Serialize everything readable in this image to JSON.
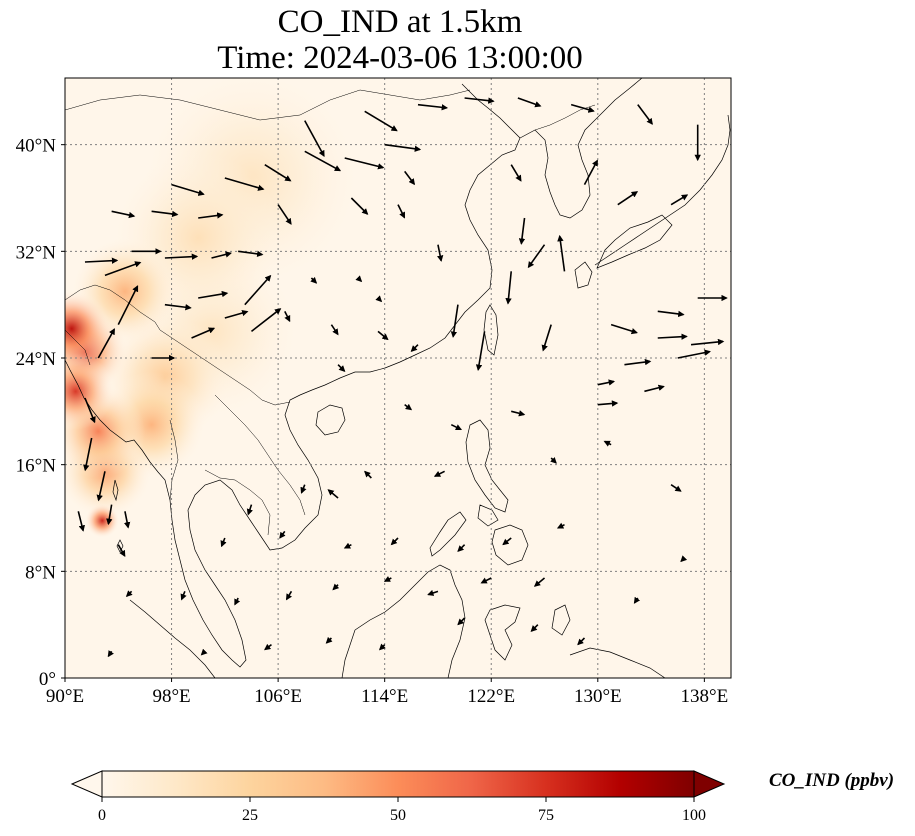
{
  "title": {
    "line1": "CO_IND at 1.5km",
    "line2": "Time: 2024-03-06 13:00:00"
  },
  "map": {
    "lon_range": [
      90,
      140
    ],
    "lat_range": [
      0,
      45
    ],
    "lon_ticks": [
      {
        "value": 90,
        "label": "90°E"
      },
      {
        "value": 98,
        "label": "98°E"
      },
      {
        "value": 106,
        "label": "106°E"
      },
      {
        "value": 114,
        "label": "114°E"
      },
      {
        "value": 122,
        "label": "122°E"
      },
      {
        "value": 130,
        "label": "130°E"
      },
      {
        "value": 138,
        "label": "138°E"
      }
    ],
    "lat_ticks": [
      {
        "value": 0,
        "label": "0°"
      },
      {
        "value": 8,
        "label": "8°N"
      },
      {
        "value": 16,
        "label": "16°N"
      },
      {
        "value": 24,
        "label": "24°N"
      },
      {
        "value": 32,
        "label": "32°N"
      },
      {
        "value": 40,
        "label": "40°N"
      }
    ],
    "gridlines": true
  },
  "colorbar": {
    "label": "CO_IND (ppbv)",
    "min": 0,
    "max": 100,
    "extend": "both",
    "colormap": "OrRd",
    "colors": [
      "#fff7ec",
      "#fee8c8",
      "#fdd49e",
      "#fdbb84",
      "#fc8d59",
      "#ef6548",
      "#d7301f",
      "#b30000",
      "#7f0000"
    ],
    "ticks": [
      {
        "value": 0,
        "label": "0"
      },
      {
        "value": 25,
        "label": "25"
      },
      {
        "value": 50,
        "label": "50"
      },
      {
        "value": 75,
        "label": "75"
      },
      {
        "value": 100,
        "label": "100"
      }
    ]
  },
  "field": {
    "background_ppbv": 3,
    "hotspots": [
      {
        "lon": 90.5,
        "lat": 26.2,
        "ppbv": 85,
        "radius_deg": 1.8
      },
      {
        "lon": 91.5,
        "lat": 24.5,
        "ppbv": 70,
        "radius_deg": 2.0
      },
      {
        "lon": 90.8,
        "lat": 21.5,
        "ppbv": 75,
        "radius_deg": 1.8
      },
      {
        "lon": 92.5,
        "lat": 18.5,
        "ppbv": 55,
        "radius_deg": 2.2
      },
      {
        "lon": 93.0,
        "lat": 15.5,
        "ppbv": 45,
        "radius_deg": 2.2
      },
      {
        "lon": 92.8,
        "lat": 11.8,
        "ppbv": 80,
        "radius_deg": 0.8
      },
      {
        "lon": 96.5,
        "lat": 19.0,
        "ppbv": 40,
        "radius_deg": 2.5
      },
      {
        "lon": 94.5,
        "lat": 29.0,
        "ppbv": 40,
        "radius_deg": 2.5
      },
      {
        "lon": 97.5,
        "lat": 22.5,
        "ppbv": 30,
        "radius_deg": 3.0
      },
      {
        "lon": 100.0,
        "lat": 33.0,
        "ppbv": 18,
        "radius_deg": 4.0
      },
      {
        "lon": 104.0,
        "lat": 37.5,
        "ppbv": 15,
        "radius_deg": 5.0
      },
      {
        "lon": 101.0,
        "lat": 26.0,
        "ppbv": 15,
        "radius_deg": 4.0
      }
    ]
  },
  "wind_vectors": [
    {
      "lon": 91.5,
      "lat": 31.2,
      "u": 2.0,
      "v": 0.1
    },
    {
      "lon": 93.0,
      "lat": 30.2,
      "u": 2.2,
      "v": 0.8
    },
    {
      "lon": 95.0,
      "lat": 32.0,
      "u": 1.8,
      "v": 0.0
    },
    {
      "lon": 97.5,
      "lat": 31.5,
      "u": 2.0,
      "v": 0.1
    },
    {
      "lon": 101.0,
      "lat": 31.5,
      "u": 1.2,
      "v": 0.3
    },
    {
      "lon": 93.5,
      "lat": 35.0,
      "u": 1.4,
      "v": -0.3
    },
    {
      "lon": 96.5,
      "lat": 35.0,
      "u": 1.6,
      "v": -0.2
    },
    {
      "lon": 100.0,
      "lat": 34.5,
      "u": 1.5,
      "v": 0.2
    },
    {
      "lon": 98.0,
      "lat": 37.0,
      "u": 2.0,
      "v": -0.6
    },
    {
      "lon": 102.0,
      "lat": 37.5,
      "u": 2.4,
      "v": -0.7
    },
    {
      "lon": 105.0,
      "lat": 38.5,
      "u": 1.6,
      "v": -1.0
    },
    {
      "lon": 108.0,
      "lat": 39.5,
      "u": 2.2,
      "v": -1.2
    },
    {
      "lon": 111.0,
      "lat": 39.0,
      "u": 2.4,
      "v": -0.6
    },
    {
      "lon": 114.0,
      "lat": 40.0,
      "u": 2.2,
      "v": -0.3
    },
    {
      "lon": 108.0,
      "lat": 41.8,
      "u": 1.2,
      "v": -2.2
    },
    {
      "lon": 112.5,
      "lat": 42.5,
      "u": 2.0,
      "v": -1.2
    },
    {
      "lon": 116.5,
      "lat": 43.0,
      "u": 1.8,
      "v": -0.2
    },
    {
      "lon": 120.0,
      "lat": 43.5,
      "u": 1.8,
      "v": -0.2
    },
    {
      "lon": 124.0,
      "lat": 43.5,
      "u": 1.4,
      "v": -0.5
    },
    {
      "lon": 128.0,
      "lat": 43.0,
      "u": 1.4,
      "v": -0.4
    },
    {
      "lon": 133.0,
      "lat": 43.0,
      "u": 0.9,
      "v": -1.2
    },
    {
      "lon": 137.5,
      "lat": 41.5,
      "u": 0.0,
      "v": -2.2
    },
    {
      "lon": 103.0,
      "lat": 32.0,
      "u": 1.5,
      "v": -0.2
    },
    {
      "lon": 106.0,
      "lat": 35.5,
      "u": 0.8,
      "v": -1.2
    },
    {
      "lon": 111.5,
      "lat": 36.0,
      "u": 1.0,
      "v": -1.0
    },
    {
      "lon": 115.5,
      "lat": 38.0,
      "u": 0.6,
      "v": -0.8
    },
    {
      "lon": 123.5,
      "lat": 38.5,
      "u": 0.6,
      "v": -1.0
    },
    {
      "lon": 129.0,
      "lat": 37.0,
      "u": 0.8,
      "v": 1.5
    },
    {
      "lon": 131.5,
      "lat": 35.5,
      "u": 1.2,
      "v": 0.8
    },
    {
      "lon": 135.5,
      "lat": 35.5,
      "u": 1.0,
      "v": 0.6
    },
    {
      "lon": 126.0,
      "lat": 32.5,
      "u": -1.0,
      "v": -1.4
    },
    {
      "lon": 124.5,
      "lat": 34.5,
      "u": -0.2,
      "v": -1.6
    },
    {
      "lon": 127.5,
      "lat": 30.5,
      "u": -0.3,
      "v": 2.2
    },
    {
      "lon": 123.5,
      "lat": 30.5,
      "u": -0.2,
      "v": -2.0
    },
    {
      "lon": 126.5,
      "lat": 26.5,
      "u": -0.5,
      "v": -1.6
    },
    {
      "lon": 131.0,
      "lat": 26.5,
      "u": 1.6,
      "v": -0.5
    },
    {
      "lon": 134.5,
      "lat": 27.5,
      "u": 1.6,
      "v": -0.2
    },
    {
      "lon": 137.5,
      "lat": 28.5,
      "u": 1.8,
      "v": 0.0
    },
    {
      "lon": 134.5,
      "lat": 25.5,
      "u": 1.8,
      "v": 0.1
    },
    {
      "lon": 137.0,
      "lat": 25.0,
      "u": 2.0,
      "v": 0.2
    },
    {
      "lon": 132.0,
      "lat": 23.5,
      "u": 1.6,
      "v": 0.2
    },
    {
      "lon": 136.0,
      "lat": 24.0,
      "u": 2.0,
      "v": 0.4
    },
    {
      "lon": 130.0,
      "lat": 22.0,
      "u": 1.0,
      "v": 0.2
    },
    {
      "lon": 133.5,
      "lat": 21.5,
      "u": 1.2,
      "v": 0.3
    },
    {
      "lon": 130.0,
      "lat": 20.5,
      "u": 1.2,
      "v": 0.1
    },
    {
      "lon": 121.5,
      "lat": 26.0,
      "u": -0.4,
      "v": -2.4
    },
    {
      "lon": 119.5,
      "lat": 28.0,
      "u": -0.3,
      "v": -2.0
    },
    {
      "lon": 118.0,
      "lat": 32.5,
      "u": 0.2,
      "v": -1.0
    },
    {
      "lon": 115.0,
      "lat": 35.5,
      "u": 0.4,
      "v": -0.8
    },
    {
      "lon": 103.5,
      "lat": 28.0,
      "u": 1.6,
      "v": 1.8
    },
    {
      "lon": 104.0,
      "lat": 26.0,
      "u": 1.8,
      "v": 1.4
    },
    {
      "lon": 102.0,
      "lat": 27.0,
      "u": 1.4,
      "v": 0.4
    },
    {
      "lon": 100.0,
      "lat": 28.5,
      "u": 1.8,
      "v": 0.3
    },
    {
      "lon": 97.5,
      "lat": 28.0,
      "u": 1.6,
      "v": -0.2
    },
    {
      "lon": 99.5,
      "lat": 25.5,
      "u": 1.4,
      "v": 0.6
    },
    {
      "lon": 96.5,
      "lat": 24.0,
      "u": 1.4,
      "v": 0.0
    },
    {
      "lon": 94.0,
      "lat": 26.5,
      "u": 1.2,
      "v": 2.4
    },
    {
      "lon": 92.5,
      "lat": 24.0,
      "u": 1.0,
      "v": 1.8
    },
    {
      "lon": 91.5,
      "lat": 21.0,
      "u": 0.6,
      "v": -1.5
    },
    {
      "lon": 92.0,
      "lat": 18.0,
      "u": -0.4,
      "v": -2.0
    },
    {
      "lon": 93.0,
      "lat": 15.5,
      "u": -0.4,
      "v": -1.8
    },
    {
      "lon": 91.0,
      "lat": 12.5,
      "u": 0.3,
      "v": -1.2
    },
    {
      "lon": 93.5,
      "lat": 13.0,
      "u": -0.2,
      "v": -1.2
    },
    {
      "lon": 94.5,
      "lat": 12.5,
      "u": 0.2,
      "v": -1.0
    },
    {
      "lon": 94.0,
      "lat": 10.0,
      "u": 0.4,
      "v": -0.7
    },
    {
      "lon": 106.5,
      "lat": 27.5,
      "u": 0.3,
      "v": -0.6
    },
    {
      "lon": 110.0,
      "lat": 26.5,
      "u": 0.4,
      "v": -0.6
    },
    {
      "lon": 113.5,
      "lat": 26.0,
      "u": 0.6,
      "v": -0.5
    },
    {
      "lon": 116.5,
      "lat": 25.0,
      "u": -0.4,
      "v": -0.4
    },
    {
      "lon": 108.5,
      "lat": 30.0,
      "u": 0.3,
      "v": -0.3
    },
    {
      "lon": 112.0,
      "lat": 30.0,
      "u": 0.2,
      "v": -0.2
    },
    {
      "lon": 113.5,
      "lat": 28.5,
      "u": 0.2,
      "v": -0.2
    },
    {
      "lon": 110.5,
      "lat": 23.5,
      "u": 0.4,
      "v": -0.4
    },
    {
      "lon": 115.5,
      "lat": 20.5,
      "u": 0.4,
      "v": -0.3
    },
    {
      "lon": 119.0,
      "lat": 19.0,
      "u": 0.6,
      "v": -0.3
    },
    {
      "lon": 123.5,
      "lat": 20.0,
      "u": 0.8,
      "v": -0.2
    },
    {
      "lon": 126.5,
      "lat": 16.5,
      "u": 0.3,
      "v": -0.3
    },
    {
      "lon": 131.0,
      "lat": 17.5,
      "u": -0.4,
      "v": 0.2
    },
    {
      "lon": 135.5,
      "lat": 14.5,
      "u": 0.6,
      "v": -0.4
    },
    {
      "lon": 118.5,
      "lat": 15.5,
      "u": -0.6,
      "v": -0.3
    },
    {
      "lon": 113.0,
      "lat": 15.0,
      "u": -0.4,
      "v": 0.4
    },
    {
      "lon": 110.5,
      "lat": 13.5,
      "u": -0.6,
      "v": 0.5
    },
    {
      "lon": 108.0,
      "lat": 14.5,
      "u": -0.2,
      "v": -0.5
    },
    {
      "lon": 104.0,
      "lat": 13.0,
      "u": -0.2,
      "v": -0.6
    },
    {
      "lon": 102.0,
      "lat": 10.5,
      "u": -0.2,
      "v": -0.5
    },
    {
      "lon": 106.5,
      "lat": 11.0,
      "u": -0.3,
      "v": -0.4
    },
    {
      "lon": 111.5,
      "lat": 10.0,
      "u": -0.4,
      "v": -0.2
    },
    {
      "lon": 115.0,
      "lat": 10.5,
      "u": -0.4,
      "v": -0.4
    },
    {
      "lon": 120.0,
      "lat": 10.0,
      "u": -0.4,
      "v": -0.4
    },
    {
      "lon": 123.5,
      "lat": 10.5,
      "u": -0.5,
      "v": -0.4
    },
    {
      "lon": 127.5,
      "lat": 11.5,
      "u": -0.4,
      "v": -0.2
    },
    {
      "lon": 126.0,
      "lat": 7.5,
      "u": -0.6,
      "v": -0.5
    },
    {
      "lon": 122.0,
      "lat": 7.5,
      "u": -0.6,
      "v": -0.3
    },
    {
      "lon": 118.0,
      "lat": 6.5,
      "u": -0.6,
      "v": -0.2
    },
    {
      "lon": 114.5,
      "lat": 7.5,
      "u": -0.4,
      "v": -0.2
    },
    {
      "lon": 110.5,
      "lat": 7.0,
      "u": -0.3,
      "v": -0.3
    },
    {
      "lon": 107.0,
      "lat": 6.5,
      "u": -0.3,
      "v": -0.5
    },
    {
      "lon": 103.0,
      "lat": 6.0,
      "u": -0.2,
      "v": -0.4
    },
    {
      "lon": 99.0,
      "lat": 6.5,
      "u": -0.2,
      "v": -0.5
    },
    {
      "lon": 95.0,
      "lat": 6.5,
      "u": -0.3,
      "v": -0.3
    },
    {
      "lon": 105.5,
      "lat": 2.5,
      "u": -0.4,
      "v": -0.3
    },
    {
      "lon": 110.0,
      "lat": 3.0,
      "u": -0.3,
      "v": -0.3
    },
    {
      "lon": 114.0,
      "lat": 2.5,
      "u": -0.3,
      "v": -0.3
    },
    {
      "lon": 120.0,
      "lat": 4.5,
      "u": -0.4,
      "v": -0.4
    },
    {
      "lon": 125.5,
      "lat": 4.0,
      "u": -0.4,
      "v": -0.4
    },
    {
      "lon": 129.0,
      "lat": 3.0,
      "u": -0.4,
      "v": -0.4
    },
    {
      "lon": 133.0,
      "lat": 6.0,
      "u": -0.2,
      "v": -0.3
    },
    {
      "lon": 136.5,
      "lat": 9.0,
      "u": -0.2,
      "v": -0.2
    },
    {
      "lon": 93.5,
      "lat": 2.0,
      "u": -0.2,
      "v": -0.3
    },
    {
      "lon": 100.5,
      "lat": 2.0,
      "u": -0.2,
      "v": -0.2
    }
  ]
}
